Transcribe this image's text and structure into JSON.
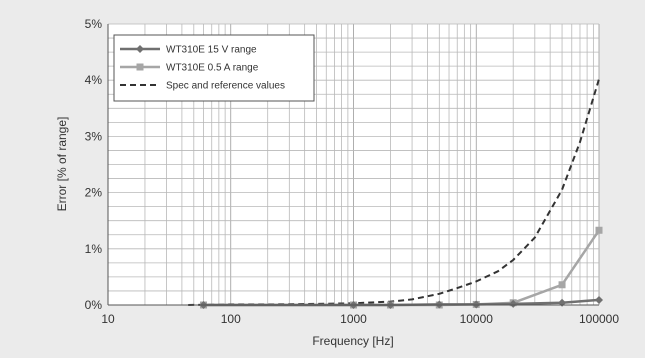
{
  "chart_data": {
    "type": "line",
    "xlabel": "Frequency [Hz]",
    "ylabel": "Error [% of  range]",
    "x_scale": "log",
    "xlim": [
      10,
      100000
    ],
    "ylim": [
      0,
      5
    ],
    "x_ticks": [
      10,
      100,
      1000,
      10000,
      100000
    ],
    "x_tick_labels": [
      "10",
      "100",
      "1000",
      "10000",
      "100000"
    ],
    "y_ticks": [
      0,
      1,
      2,
      3,
      4,
      5
    ],
    "y_tick_labels": [
      "0%",
      "1%",
      "2%",
      "3%",
      "4%",
      "5%"
    ],
    "grid": true,
    "legend_position": "top-left",
    "series": [
      {
        "name": "WT310E 15 V range",
        "style": "solid",
        "marker": "diamond",
        "color": "#707070",
        "x": [
          60,
          1000,
          2000,
          5000,
          10000,
          20000,
          50000,
          100000
        ],
        "y": [
          0.0,
          0.0,
          0.0,
          0.01,
          0.01,
          0.02,
          0.04,
          0.09
        ]
      },
      {
        "name": "WT310E 0.5 A range",
        "style": "solid",
        "marker": "square",
        "color": "#a6a6a6",
        "x": [
          60,
          1000,
          2000,
          5000,
          10000,
          20000,
          50000,
          100000
        ],
        "y": [
          0.0,
          0.0,
          0.0,
          0.0,
          0.01,
          0.04,
          0.36,
          1.33
        ]
      },
      {
        "name": "Spec and reference values",
        "style": "dashed",
        "marker": "none",
        "color": "#333333",
        "x": [
          45,
          100,
          200,
          500,
          1000,
          2000,
          3000,
          5000,
          7000,
          10000,
          15000,
          20000,
          30000,
          50000,
          70000,
          100000
        ],
        "y": [
          0.0,
          0.01,
          0.01,
          0.02,
          0.03,
          0.06,
          0.1,
          0.2,
          0.3,
          0.42,
          0.6,
          0.8,
          1.2,
          2.05,
          2.9,
          4.02
        ]
      }
    ]
  }
}
